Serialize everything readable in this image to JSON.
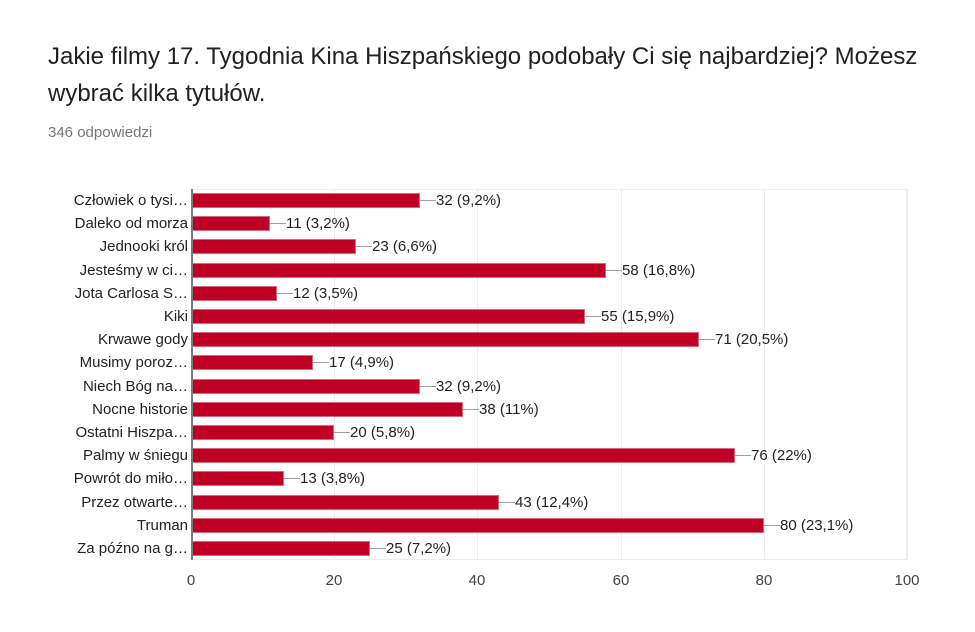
{
  "header": {
    "title": "Jakie filmy 17. Tygodnia Kina Hiszpańskiego podobały Ci się najbardziej? Możesz wybrać kilka tytułów.",
    "response_count": "346 odpowiedzi"
  },
  "colors": {
    "bar": "#bf0024",
    "gridline": "#ececec",
    "axis": "#7a7a7a",
    "leader": "#9e9e9e"
  },
  "chart_data": {
    "type": "bar",
    "orientation": "horizontal",
    "title": "Jakie filmy 17. Tygodnia Kina Hiszpańskiego podobały Ci się najbardziej? Możesz wybrać kilka tytułów.",
    "subtitle": "346 odpowiedzi",
    "xlabel": "",
    "ylabel": "",
    "xlim": [
      0,
      100
    ],
    "x_ticks": [
      "0",
      "20",
      "40",
      "60",
      "80",
      "100"
    ],
    "grid": true,
    "legend": null,
    "categories": [
      "Człowiek o tysi…",
      "Daleko od morza",
      "Jednooki król",
      "Jesteśmy w ci…",
      "Jota Carlosa S…",
      "Kiki",
      "Krwawe gody",
      "Musimy poroz…",
      "Niech Bóg na…",
      "Nocne historie",
      "Ostatni Hiszpa…",
      "Palmy w śniegu",
      "Powrót do miło…",
      "Przez otwarte…",
      "Truman",
      "Za późno na g…"
    ],
    "values": [
      32,
      11,
      23,
      58,
      12,
      55,
      71,
      17,
      32,
      38,
      20,
      76,
      13,
      43,
      80,
      25
    ],
    "labels": [
      "32 (9,2%)",
      "11 (3,2%)",
      "23 (6,6%)",
      "58 (16,8%)",
      "12 (3,5%)",
      "55 (15,9%)",
      "71 (20,5%)",
      "17 (4,9%)",
      "32 (9,2%)",
      "38 (11%)",
      "20 (5,8%)",
      "76 (22%)",
      "13 (3,8%)",
      "43 (12,4%)",
      "80 (23,1%)",
      "25 (7,2%)"
    ]
  }
}
